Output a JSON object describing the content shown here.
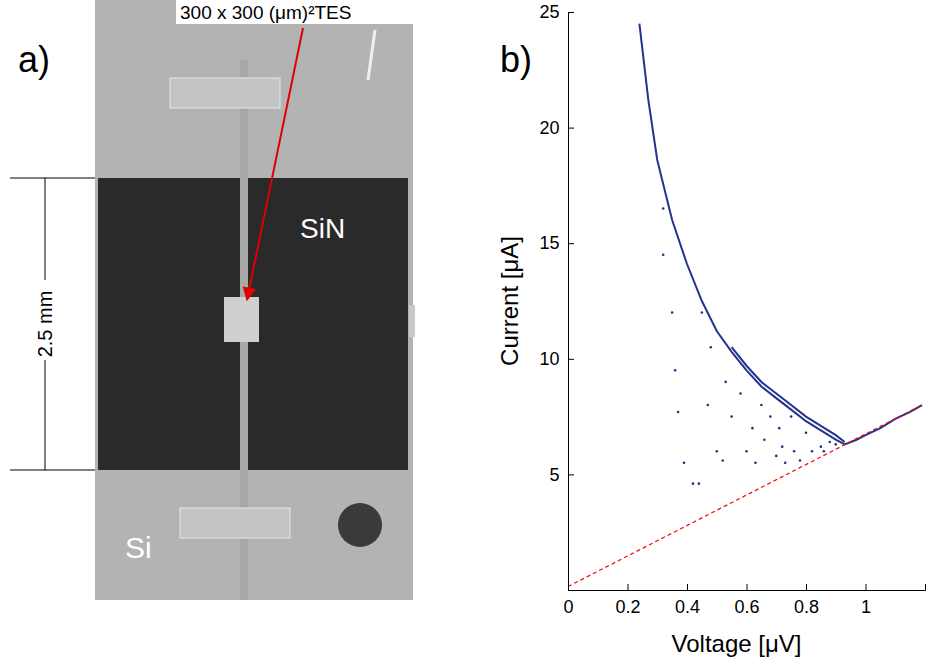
{
  "panel_a": {
    "label": "a)",
    "tes_label": "300 x 300 (μm)²TES",
    "membrane_label": "SiN",
    "substrate_label": "Si",
    "scale_label": "2.5 mm"
  },
  "chart_data": {
    "type": "line",
    "panel_label": "b)",
    "x_label": "Voltage [μV]",
    "y_label": "Current [μA]",
    "xlim": [
      0,
      1.2
    ],
    "ylim": [
      0,
      25
    ],
    "xticks": [
      0,
      0.2,
      0.4,
      0.6,
      0.8,
      1
    ],
    "yticks": [
      5,
      10,
      15,
      20,
      25
    ],
    "series": [
      {
        "type": "line",
        "color": "#24338c",
        "line_style": "solid",
        "x": [
          0.24,
          0.27,
          0.3,
          0.35,
          0.4,
          0.45,
          0.5,
          0.55,
          0.6,
          0.65,
          0.7,
          0.75,
          0.8,
          0.85,
          0.9,
          0.93,
          0.97,
          1.0,
          1.05,
          1.1,
          1.15,
          1.19
        ],
        "values": [
          24.5,
          21.2,
          18.6,
          16.0,
          14.1,
          12.5,
          11.2,
          10.3,
          9.5,
          8.8,
          8.3,
          7.8,
          7.3,
          6.9,
          6.5,
          6.3,
          6.5,
          6.7,
          7.0,
          7.4,
          7.7,
          8.0
        ]
      },
      {
        "type": "line",
        "color": "#24338c",
        "line_style": "solid",
        "x": [
          0.55,
          0.6,
          0.65,
          0.7,
          0.75,
          0.8,
          0.85,
          0.9,
          0.93
        ],
        "values": [
          10.5,
          9.7,
          9.0,
          8.5,
          8.0,
          7.5,
          7.1,
          6.7,
          6.4
        ]
      },
      {
        "type": "scatter",
        "color": "#24338c",
        "marker": "dot",
        "x": [
          0.32,
          0.32,
          0.35,
          0.36,
          0.37,
          0.39,
          0.42,
          0.44,
          0.45,
          0.47,
          0.48,
          0.5,
          0.52,
          0.53,
          0.55,
          0.58,
          0.6,
          0.62,
          0.63,
          0.65,
          0.66,
          0.68,
          0.7,
          0.71,
          0.72,
          0.73,
          0.75,
          0.76,
          0.78,
          0.8,
          0.82,
          0.85,
          0.86,
          0.88,
          0.9
        ],
        "values": [
          16.5,
          14.5,
          12.0,
          9.5,
          7.7,
          5.5,
          4.6,
          4.6,
          12.0,
          8.0,
          10.5,
          6.0,
          5.6,
          9.0,
          7.5,
          8.5,
          6.0,
          7.0,
          5.5,
          8.0,
          6.5,
          7.5,
          5.8,
          7.0,
          6.2,
          5.5,
          7.5,
          6.0,
          5.6,
          6.8,
          6.0,
          6.2,
          6.0,
          6.4,
          6.3
        ]
      },
      {
        "type": "line",
        "color": "#ff0000",
        "line_style": "dashed",
        "x": [
          0,
          1.19
        ],
        "values": [
          0.15,
          8.0
        ]
      }
    ]
  }
}
